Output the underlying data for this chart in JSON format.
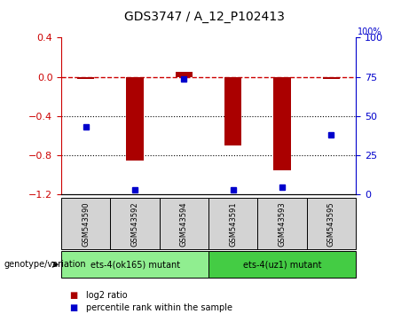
{
  "title": "GDS3747 / A_12_P102413",
  "samples": [
    "GSM543590",
    "GSM543592",
    "GSM543594",
    "GSM543591",
    "GSM543593",
    "GSM543595"
  ],
  "log2_ratio": [
    -0.02,
    -0.85,
    0.05,
    -0.7,
    -0.95,
    -0.02
  ],
  "percentile_rank": [
    43,
    3,
    74,
    3,
    5,
    38
  ],
  "ylim_left": [
    -1.2,
    0.4
  ],
  "ylim_right": [
    0,
    100
  ],
  "yticks_left": [
    -1.2,
    -0.8,
    -0.4,
    0.0,
    0.4
  ],
  "yticks_right": [
    0,
    25,
    50,
    75,
    100
  ],
  "hline_y": 0.0,
  "dotted_lines": [
    -0.4,
    -0.8
  ],
  "bar_color": "#AA0000",
  "dot_color": "#0000CC",
  "bar_width": 0.35,
  "groups": [
    {
      "label": "ets-4(ok165) mutant",
      "samples": [
        "GSM543590",
        "GSM543592",
        "GSM543594"
      ],
      "color": "#90EE90"
    },
    {
      "label": "ets-4(uz1) mutant",
      "samples": [
        "GSM543591",
        "GSM543593",
        "GSM543595"
      ],
      "color": "#44CC44"
    }
  ],
  "legend_items": [
    {
      "label": "log2 ratio",
      "color": "#AA0000"
    },
    {
      "label": "percentile rank within the sample",
      "color": "#0000CC"
    }
  ],
  "genotype_label": "genotype/variation",
  "title_color": "#000000",
  "left_axis_color": "#CC0000",
  "right_axis_color": "#0000CC"
}
